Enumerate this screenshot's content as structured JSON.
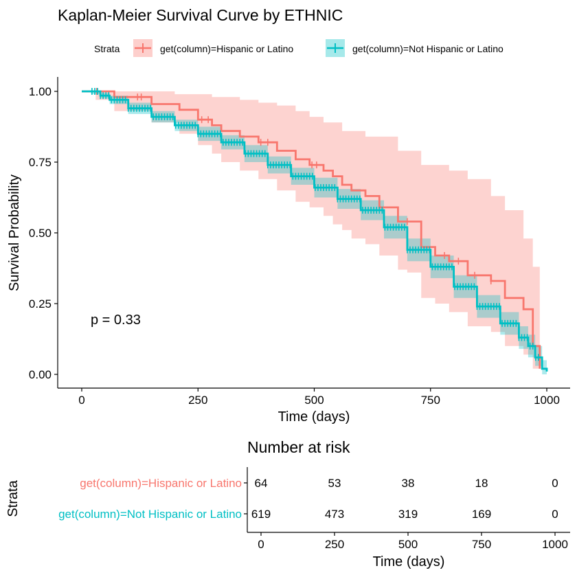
{
  "chart_data": [
    {
      "type": "line",
      "subtype": "kaplan-meier",
      "title": "Kaplan-Meier Survival Curve by ETHNIC",
      "xlabel": "Time (days)",
      "ylabel": "Survival Probability",
      "xlim": [
        0,
        1000
      ],
      "ylim": [
        0,
        1
      ],
      "x_ticks": [
        0,
        250,
        500,
        750,
        1000
      ],
      "y_ticks": [
        0.0,
        0.25,
        0.5,
        0.75,
        1.0
      ],
      "x_tick_labels": [
        "0",
        "250",
        "500",
        "750",
        "1000"
      ],
      "y_tick_labels": [
        "0.00",
        "0.25",
        "0.50",
        "0.75",
        "1.00"
      ],
      "grid": false,
      "legend_title": "Strata",
      "legend_position": "top",
      "annotation": "p = 0.33",
      "series": [
        {
          "name": "get(column)=Hispanic or Latino",
          "color": "#F8766D",
          "fill_color": "#F8766D",
          "steps": [
            [
              0,
              1.0
            ],
            [
              30,
              1.0
            ],
            [
              70,
              0.98
            ],
            [
              150,
              0.955
            ],
            [
              210,
              0.935
            ],
            [
              250,
              0.9
            ],
            [
              280,
              0.88
            ],
            [
              300,
              0.86
            ],
            [
              340,
              0.84
            ],
            [
              380,
              0.82
            ],
            [
              420,
              0.79
            ],
            [
              460,
              0.76
            ],
            [
              490,
              0.74
            ],
            [
              520,
              0.72
            ],
            [
              540,
              0.7
            ],
            [
              560,
              0.67
            ],
            [
              580,
              0.65
            ],
            [
              610,
              0.63
            ],
            [
              640,
              0.59
            ],
            [
              680,
              0.54
            ],
            [
              700,
              0.54
            ],
            [
              730,
              0.45
            ],
            [
              760,
              0.42
            ],
            [
              790,
              0.4
            ],
            [
              830,
              0.35
            ],
            [
              880,
              0.33
            ],
            [
              910,
              0.27
            ],
            [
              950,
              0.23
            ],
            [
              970,
              0.1
            ],
            [
              985,
              0.02
            ]
          ],
          "upper": [
            [
              0,
              1.0
            ],
            [
              30,
              1.0
            ],
            [
              150,
              1.0
            ],
            [
              200,
              0.99
            ],
            [
              280,
              0.98
            ],
            [
              340,
              0.97
            ],
            [
              380,
              0.96
            ],
            [
              420,
              0.95
            ],
            [
              460,
              0.93
            ],
            [
              490,
              0.91
            ],
            [
              520,
              0.89
            ],
            [
              560,
              0.86
            ],
            [
              610,
              0.84
            ],
            [
              680,
              0.79
            ],
            [
              730,
              0.74
            ],
            [
              790,
              0.72
            ],
            [
              830,
              0.69
            ],
            [
              880,
              0.63
            ],
            [
              910,
              0.58
            ],
            [
              950,
              0.48
            ],
            [
              970,
              0.38
            ],
            [
              985,
              0.25
            ]
          ],
          "lower": [
            [
              0,
              1.0
            ],
            [
              30,
              0.97
            ],
            [
              70,
              0.93
            ],
            [
              150,
              0.89
            ],
            [
              210,
              0.85
            ],
            [
              250,
              0.81
            ],
            [
              280,
              0.78
            ],
            [
              300,
              0.75
            ],
            [
              340,
              0.72
            ],
            [
              380,
              0.69
            ],
            [
              420,
              0.65
            ],
            [
              460,
              0.61
            ],
            [
              490,
              0.59
            ],
            [
              520,
              0.56
            ],
            [
              540,
              0.53
            ],
            [
              560,
              0.51
            ],
            [
              580,
              0.48
            ],
            [
              610,
              0.46
            ],
            [
              640,
              0.42
            ],
            [
              680,
              0.37
            ],
            [
              700,
              0.36
            ],
            [
              730,
              0.27
            ],
            [
              760,
              0.25
            ],
            [
              790,
              0.22
            ],
            [
              830,
              0.17
            ],
            [
              880,
              0.15
            ],
            [
              910,
              0.1
            ],
            [
              950,
              0.07
            ],
            [
              970,
              0.02
            ],
            [
              985,
              0.0
            ]
          ],
          "censor_times": [
            32,
            120,
            128,
            258,
            272,
            385,
            400,
            495,
            505,
            700,
            780,
            810,
            845,
            880
          ]
        },
        {
          "name": "get(column)=Not Hispanic or Latino",
          "color": "#00BFC4",
          "fill_color": "#00BFC4",
          "steps": [
            [
              0,
              1.0
            ],
            [
              20,
              1.0
            ],
            [
              40,
              0.985
            ],
            [
              60,
              0.97
            ],
            [
              100,
              0.94
            ],
            [
              150,
              0.91
            ],
            [
              200,
              0.88
            ],
            [
              250,
              0.85
            ],
            [
              300,
              0.82
            ],
            [
              350,
              0.78
            ],
            [
              400,
              0.74
            ],
            [
              450,
              0.7
            ],
            [
              500,
              0.66
            ],
            [
              550,
              0.62
            ],
            [
              600,
              0.58
            ],
            [
              650,
              0.52
            ],
            [
              700,
              0.44
            ],
            [
              750,
              0.38
            ],
            [
              800,
              0.31
            ],
            [
              850,
              0.24
            ],
            [
              900,
              0.18
            ],
            [
              940,
              0.13
            ],
            [
              960,
              0.1
            ],
            [
              975,
              0.06
            ],
            [
              990,
              0.02
            ],
            [
              1000,
              0.01
            ]
          ],
          "upper": [
            [
              0,
              1.0
            ],
            [
              20,
              1.0
            ],
            [
              40,
              0.995
            ],
            [
              60,
              0.985
            ],
            [
              100,
              0.96
            ],
            [
              150,
              0.93
            ],
            [
              200,
              0.9
            ],
            [
              250,
              0.875
            ],
            [
              300,
              0.845
            ],
            [
              350,
              0.81
            ],
            [
              400,
              0.77
            ],
            [
              450,
              0.73
            ],
            [
              500,
              0.695
            ],
            [
              550,
              0.655
            ],
            [
              600,
              0.615
            ],
            [
              650,
              0.56
            ],
            [
              700,
              0.48
            ],
            [
              750,
              0.42
            ],
            [
              800,
              0.35
            ],
            [
              850,
              0.28
            ],
            [
              900,
              0.22
            ],
            [
              940,
              0.17
            ],
            [
              960,
              0.14
            ],
            [
              975,
              0.1
            ],
            [
              990,
              0.05
            ],
            [
              1000,
              0.03
            ]
          ],
          "lower": [
            [
              0,
              1.0
            ],
            [
              20,
              0.99
            ],
            [
              40,
              0.975
            ],
            [
              60,
              0.955
            ],
            [
              100,
              0.92
            ],
            [
              150,
              0.89
            ],
            [
              200,
              0.86
            ],
            [
              250,
              0.825
            ],
            [
              300,
              0.795
            ],
            [
              350,
              0.75
            ],
            [
              400,
              0.71
            ],
            [
              450,
              0.67
            ],
            [
              500,
              0.625
            ],
            [
              550,
              0.585
            ],
            [
              600,
              0.545
            ],
            [
              650,
              0.48
            ],
            [
              700,
              0.4
            ],
            [
              750,
              0.34
            ],
            [
              800,
              0.27
            ],
            [
              850,
              0.2
            ],
            [
              900,
              0.14
            ],
            [
              940,
              0.09
            ],
            [
              960,
              0.06
            ],
            [
              975,
              0.03
            ],
            [
              990,
              0.0
            ],
            [
              1000,
              0.0
            ]
          ]
        }
      ]
    },
    {
      "type": "table",
      "title": "Number at risk",
      "ylabel": "Strata",
      "xlabel": "Time (days)",
      "x_ticks": [
        0,
        250,
        500,
        750,
        1000
      ],
      "x_tick_labels": [
        "0",
        "250",
        "500",
        "750",
        "1000"
      ],
      "rows": [
        {
          "label": "get(column)=Hispanic or Latino",
          "color": "#F8766D",
          "values": [
            "64",
            "53",
            "38",
            "18",
            "0"
          ]
        },
        {
          "label": "get(column)=Not Hispanic or Latino",
          "color": "#00BFC4",
          "values": [
            "619",
            "473",
            "319",
            "169",
            "0"
          ]
        }
      ]
    }
  ]
}
